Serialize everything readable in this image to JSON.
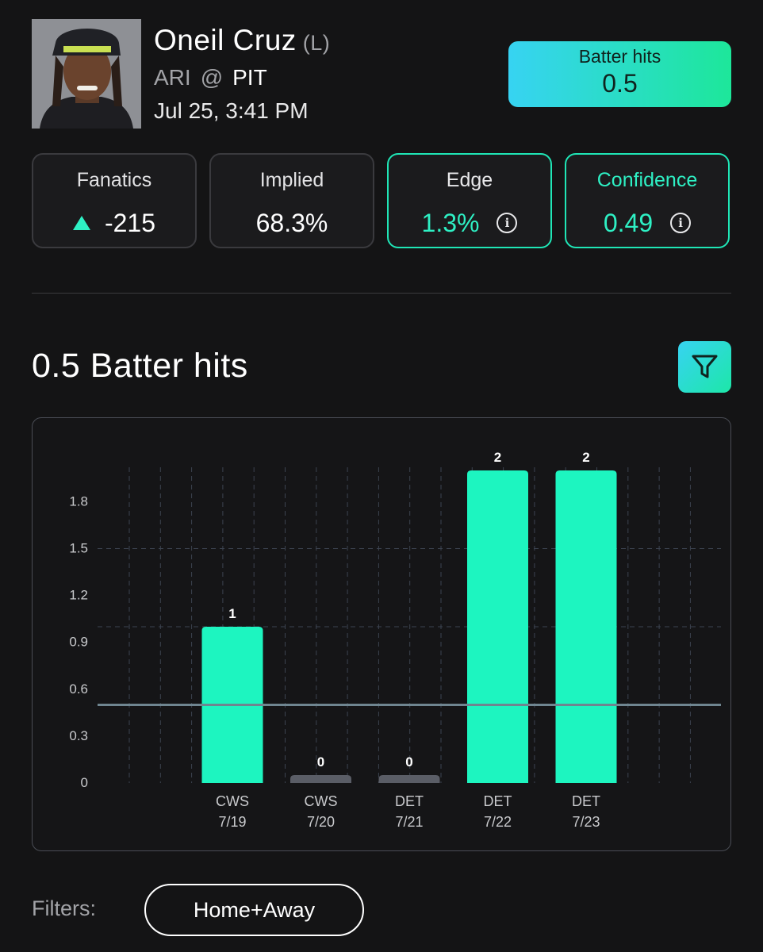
{
  "player": {
    "name": "Oneil Cruz",
    "hand": "(L)",
    "away_team": "ARI",
    "at_symbol": "@",
    "home_team": "PIT",
    "game_time": "Jul 25, 3:41 PM"
  },
  "market": {
    "label": "Batter hits",
    "line": "0.5"
  },
  "cards": {
    "book": {
      "label": "Fanatics",
      "value": "-215"
    },
    "implied": {
      "label": "Implied",
      "value": "68.3%"
    },
    "edge": {
      "label": "Edge",
      "value": "1.3%"
    },
    "confidence": {
      "label": "Confidence",
      "value": "0.49"
    }
  },
  "section": {
    "title": "0.5 Batter hits"
  },
  "colors": {
    "accent": "#1df5c0",
    "zero_bar": "#5a5d66",
    "background": "#141415"
  },
  "chart_data": {
    "type": "bar",
    "categories": [
      "CWS 7/19",
      "CWS 7/20",
      "DET 7/21",
      "DET 7/22",
      "DET 7/23"
    ],
    "opponents": [
      "CWS",
      "CWS",
      "DET",
      "DET",
      "DET"
    ],
    "dates": [
      "7/19",
      "7/20",
      "7/21",
      "7/22",
      "7/23"
    ],
    "values": [
      1,
      0,
      0,
      2,
      2
    ],
    "data_labels": [
      "1",
      "0",
      "0",
      "2",
      "2"
    ],
    "y_ticks": [
      "0",
      "0.3",
      "0.6",
      "0.9",
      "1.2",
      "1.5",
      "1.8"
    ],
    "ylim": [
      0,
      2
    ],
    "line_value": 0.5,
    "grid": true,
    "title": "",
    "xlabel": "",
    "ylabel": ""
  },
  "filters": {
    "label": "Filters:",
    "selected": "Home+Away"
  }
}
